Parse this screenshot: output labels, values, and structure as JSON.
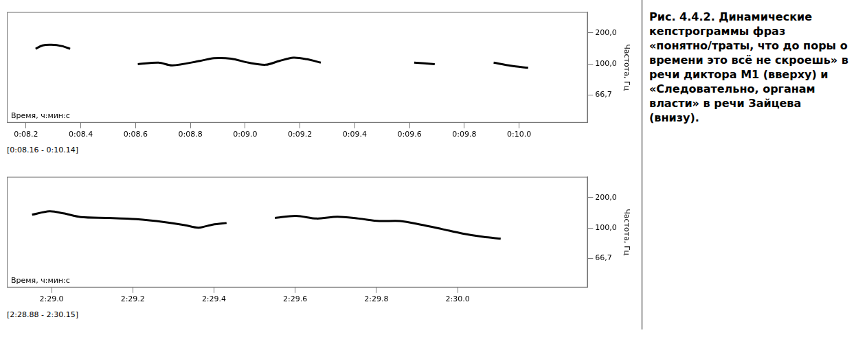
{
  "figure": {
    "caption": {
      "label": "Рис. 4.4.2.",
      "text": "Динамические кепстрограммы фраз «понятно/траты, что до поры о времени это всё не скроешь» в речи диктора М1 (вверху) и «Следовательно, органам власти» в речи Зайцева (внизу)."
    }
  },
  "chart_data": [
    {
      "type": "line",
      "x_label": "Время, ч:мин:с",
      "y_label": "Частота, Гц",
      "range_label": "[0:08.16 - 0:10.14]",
      "color": "#000000",
      "grid": false,
      "x": [
        8.235,
        8.26,
        8.293,
        8.331,
        8.361,
        8.4,
        8.608,
        8.684,
        8.734,
        8.835,
        8.886,
        8.949,
        9.012,
        9.075,
        9.125,
        9.176,
        9.226,
        9.276,
        9.32,
        9.617,
        9.692,
        9.75,
        9.907,
        9.97,
        10.033
      ],
      "values": [
        132,
        142,
        144,
        140,
        132,
        null,
        99.6,
        102,
        97.6,
        105,
        110,
        109,
        102,
        98.6,
        105,
        111,
        108,
        102,
        null,
        102,
        99.6,
        null,
        102,
        97,
        94
      ],
      "xlim": [
        8.13,
        10.25
      ],
      "xticks": [
        {
          "value": 8.2,
          "label": "0:08.2"
        },
        {
          "value": 8.4,
          "label": "0:08.4"
        },
        {
          "value": 8.6,
          "label": "0:08.6"
        },
        {
          "value": 8.8,
          "label": "0:08.8"
        },
        {
          "value": 9.0,
          "label": "0:09.0"
        },
        {
          "value": 9.2,
          "label": "0:09.2"
        },
        {
          "value": 9.4,
          "label": "0:09.4"
        },
        {
          "value": 9.6,
          "label": "0:09.6"
        },
        {
          "value": 9.8,
          "label": "0:09.8"
        },
        {
          "value": 10.0,
          "label": "0:10.0"
        }
      ],
      "ylim": [
        51.4,
        595
      ],
      "yticks": [
        {
          "value": 200,
          "label": "200,0"
        },
        {
          "value": 100,
          "label": "100,0"
        },
        {
          "value": 66.7,
          "label": "66,7"
        }
      ]
    },
    {
      "type": "line",
      "x_label": "Время, ч:мин:с",
      "y_label": "Частота, Гц",
      "range_label": "[2:28.88 - 2:30.15]",
      "color": "#000000",
      "grid": false,
      "x": [
        148.952,
        148.995,
        149.029,
        149.072,
        149.14,
        149.209,
        149.277,
        149.328,
        149.362,
        149.397,
        149.431,
        149.48,
        149.55,
        149.602,
        149.653,
        149.704,
        149.756,
        149.807,
        149.858,
        149.909,
        149.961,
        150.012,
        150.063,
        150.106
      ],
      "values": [
        128,
        138,
        132,
        122,
        120,
        117,
        111,
        105,
        100.5,
        106,
        109,
        null,
        120,
        125,
        118.5,
        123,
        118.5,
        113,
        113,
        106,
        98.4,
        91.7,
        87.3,
        85
      ],
      "xlim": [
        148.89,
        150.32
      ],
      "xticks": [
        {
          "value": 149.0,
          "label": "2:29.0"
        },
        {
          "value": 149.2,
          "label": "2:29.2"
        },
        {
          "value": 149.4,
          "label": "2:29.4"
        },
        {
          "value": 149.6,
          "label": "2:29.6"
        },
        {
          "value": 149.8,
          "label": "2:29.8"
        },
        {
          "value": 150.0,
          "label": "2:30.0"
        }
      ],
      "ylim": [
        50.5,
        640
      ],
      "yticks": [
        {
          "value": 200,
          "label": "200,0"
        },
        {
          "value": 100,
          "label": "100,0"
        },
        {
          "value": 66.7,
          "label": "66,7"
        }
      ]
    }
  ]
}
